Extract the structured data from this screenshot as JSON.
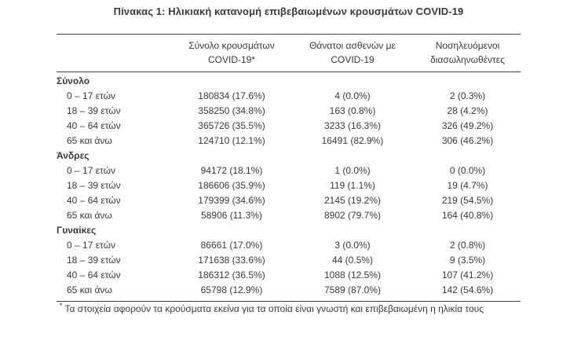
{
  "title": "Πίνακας 1: Ηλικιακή κατανομή επιβεβαιωμένων κρουσμάτων COVID-19",
  "table": {
    "columns": [
      {
        "line1": "Σύνολο κρουσμάτων",
        "line2": "COVID-19*"
      },
      {
        "line1": "Θάνατοι ασθενών με",
        "line2": "COVID-19"
      },
      {
        "line1": "Νοσηλευόμενοι",
        "line2": "διασωληνωθέντες"
      }
    ],
    "sections": [
      {
        "name": "Σύνολο",
        "rows": [
          {
            "age": "0 – 17 ετών",
            "cases": "180834 (17.6%)",
            "deaths": "4 (0.0%)",
            "intubated": "2 (0.3%)"
          },
          {
            "age": "18 – 39 ετών",
            "cases": "358250 (34.8%)",
            "deaths": "163 (0.8%)",
            "intubated": "28 (4.2%)"
          },
          {
            "age": "40 – 64 ετών",
            "cases": "365726 (35.5%)",
            "deaths": "3233 (16.3%)",
            "intubated": "326 (49.2%)"
          },
          {
            "age": "65 και άνω",
            "cases": "124710 (12.1%)",
            "deaths": "16491 (82.9%)",
            "intubated": "306 (46.2%)"
          }
        ]
      },
      {
        "name": "Άνδρες",
        "rows": [
          {
            "age": "0 – 17 ετών",
            "cases": "94172 (18.1%)",
            "deaths": "1 (0.0%)",
            "intubated": "0 (0.0%)"
          },
          {
            "age": "18 – 39 ετών",
            "cases": "186606 (35.9%)",
            "deaths": "119 (1.1%)",
            "intubated": "19 (4.7%)"
          },
          {
            "age": "40 – 64 ετών",
            "cases": "179399 (34.6%)",
            "deaths": "2145 (19.2%)",
            "intubated": "219 (54.5%)"
          },
          {
            "age": "65 και άνω",
            "cases": "58906 (11.3%)",
            "deaths": "8902 (79.7%)",
            "intubated": "164 (40.8%)"
          }
        ]
      },
      {
        "name": "Γυναίκες",
        "rows": [
          {
            "age": "0 – 17 ετών",
            "cases": "86661 (17.0%)",
            "deaths": "3 (0.0%)",
            "intubated": "2 (0.8%)"
          },
          {
            "age": "18 – 39 ετών",
            "cases": "171638 (33.6%)",
            "deaths": "44 (0.5%)",
            "intubated": "9 (3.5%)"
          },
          {
            "age": "40 – 64 ετών",
            "cases": "186312 (36.5%)",
            "deaths": "1088 (12.5%)",
            "intubated": "107 (41.2%)"
          },
          {
            "age": "65 και άνω",
            "cases": "65798 (12.9%)",
            "deaths": "7589 (87.0%)",
            "intubated": "142 (54.6%)"
          }
        ]
      }
    ],
    "footnote_marker": "*",
    "footnote": "Τα στοιχεία αφορούν τα κρούσματα εκείνα για τα οποία είναι γνωστή και επιβεβαιωμένη η ηλικία τους"
  },
  "colors": {
    "text": "#3a3a3c",
    "rule": "#414143",
    "background": "#ffffff"
  }
}
